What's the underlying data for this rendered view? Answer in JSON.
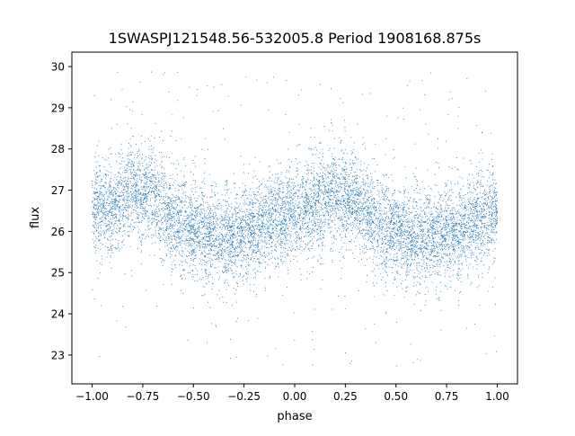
{
  "chart_data": {
    "type": "scatter",
    "title": "1SWASPJ121548.56-532005.8 Period 1908168.875s",
    "xlabel": "phase",
    "ylabel": "flux",
    "xlim": [
      -1.1,
      1.1
    ],
    "ylim": [
      22.3,
      30.35
    ],
    "x_ticks": [
      -1.0,
      -0.75,
      -0.5,
      -0.25,
      0.0,
      0.25,
      0.5,
      0.75,
      1.0
    ],
    "x_tick_labels": [
      "−1.00",
      "−0.75",
      "−0.50",
      "−0.25",
      "0.00",
      "0.25",
      "0.50",
      "0.75",
      "1.00"
    ],
    "y_ticks": [
      23,
      24,
      25,
      26,
      27,
      28,
      29,
      30
    ],
    "y_tick_labels": [
      "23",
      "24",
      "25",
      "26",
      "27",
      "28",
      "29",
      "30"
    ],
    "grid": false,
    "legend": "none",
    "marker_color": "#1f77b4",
    "series": [
      {
        "x_range": [
          -1.0,
          1.0
        ],
        "y_center_by_x": [
          [
            -1.0,
            26.5
          ],
          [
            -0.9,
            26.6
          ],
          [
            -0.8,
            27.0
          ],
          [
            -0.7,
            26.9
          ],
          [
            -0.6,
            26.3
          ],
          [
            -0.5,
            26.1
          ],
          [
            -0.4,
            25.9
          ],
          [
            -0.3,
            25.85
          ],
          [
            -0.2,
            26.1
          ],
          [
            -0.1,
            26.3
          ],
          [
            0.0,
            26.4
          ],
          [
            0.1,
            26.6
          ],
          [
            0.2,
            26.9
          ],
          [
            0.3,
            26.8
          ],
          [
            0.4,
            26.2
          ],
          [
            0.5,
            26.0
          ],
          [
            0.6,
            25.8
          ],
          [
            0.7,
            25.9
          ],
          [
            0.8,
            26.1
          ],
          [
            0.9,
            26.3
          ],
          [
            1.0,
            26.5
          ]
        ],
        "y_spread": 0.5,
        "y_outlier_range": [
          22.7,
          30.0
        ],
        "point_count": 9000
      }
    ]
  }
}
